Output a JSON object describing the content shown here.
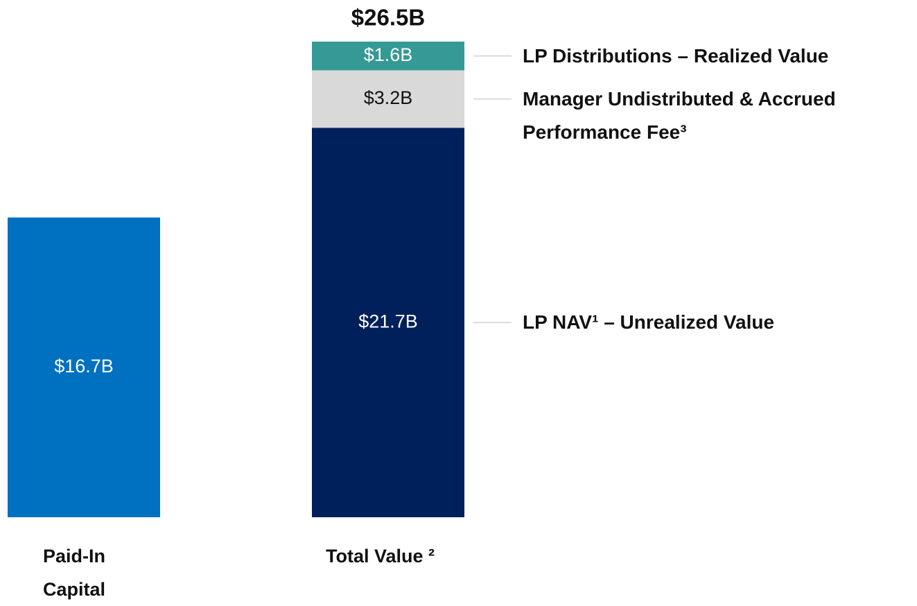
{
  "chart_data": {
    "type": "bar",
    "bars": [
      {
        "category": "Paid-In Capital",
        "value": 16.7,
        "value_label": "$16.7B",
        "color": "#0070c0"
      },
      {
        "category": "Total Value ²",
        "total": 26.5,
        "total_label": "$26.5B",
        "segments": [
          {
            "name": "LP NAV¹ – Unrealized Value",
            "value": 21.7,
            "value_label": "$21.7B",
            "color": "#00205b"
          },
          {
            "name": "Manager Undistributed & Accrued Performance Fee³",
            "value": 3.2,
            "value_label": "$3.2B",
            "color": "#d9d9d9"
          },
          {
            "name": "LP Distributions – Realized Value",
            "value": 1.6,
            "value_label": "$1.6B",
            "color": "#359a96"
          }
        ]
      }
    ]
  }
}
